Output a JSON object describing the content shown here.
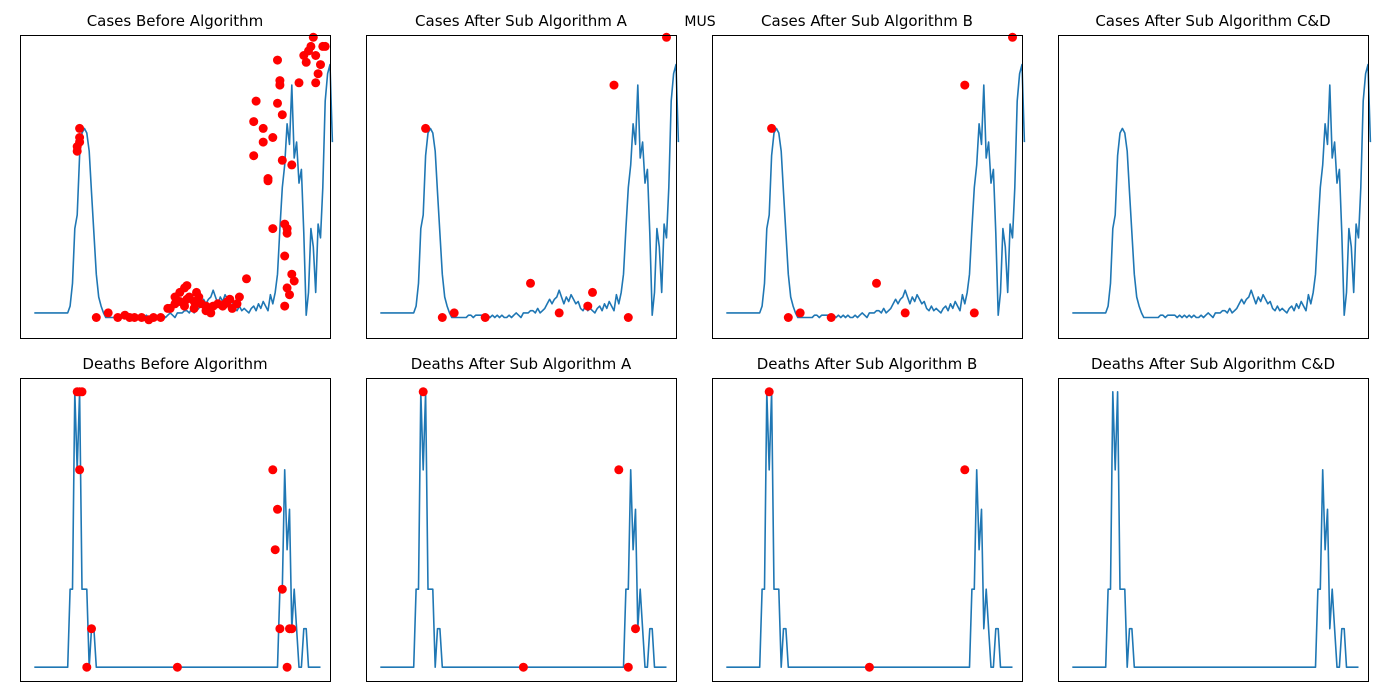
{
  "suptitle": "MUS",
  "chart_data": [
    {
      "type": "line",
      "title": "Cases Before Algorithm",
      "xlabel": "",
      "ylabel": "",
      "xlim": [
        -6,
        124
      ],
      "ylim": [
        -8,
        125
      ],
      "line_color": "#1f77b4",
      "marker_color": "#ff0000",
      "y": [
        3,
        3,
        3,
        3,
        3,
        3,
        3,
        3,
        3,
        3,
        3,
        3,
        3,
        3,
        3,
        6,
        16,
        40,
        46,
        72,
        82,
        84,
        82,
        74,
        56,
        38,
        20,
        10,
        6,
        3,
        1,
        1,
        1,
        1,
        1,
        1,
        1,
        2,
        2,
        1,
        2,
        2,
        2,
        2,
        1,
        2,
        1,
        2,
        1,
        2,
        1,
        2,
        1,
        1,
        2,
        1,
        2,
        3,
        2,
        1,
        3,
        3,
        3,
        4,
        4,
        3,
        5,
        3,
        4,
        5,
        7,
        9,
        7,
        9,
        10,
        13,
        10,
        7,
        10,
        8,
        11,
        9,
        7,
        8,
        5,
        4,
        6,
        4,
        5,
        4,
        3,
        5,
        6,
        4,
        7,
        5,
        8,
        6,
        4,
        11,
        7,
        12,
        20,
        40,
        58,
        68,
        86,
        77,
        103,
        71,
        78,
        60,
        66,
        38,
        2,
        12,
        40,
        32,
        12,
        42,
        36,
        58,
        96,
        108,
        112,
        78
      ],
      "markers_x": [
        18,
        18,
        19,
        19,
        19,
        26,
        31,
        35,
        38,
        40,
        42,
        45,
        48,
        50,
        53,
        56,
        57,
        59,
        59,
        61,
        61,
        63,
        63,
        64,
        64,
        65,
        67,
        67,
        68,
        69,
        70,
        72,
        72,
        73,
        74,
        75,
        77,
        79,
        80,
        81,
        82,
        83,
        85,
        86,
        89,
        92,
        92,
        93,
        96,
        96,
        98,
        98,
        100,
        100,
        102,
        102,
        103,
        103,
        104,
        104,
        105,
        105,
        105,
        106,
        106,
        106,
        107,
        108,
        108,
        109,
        111,
        113,
        114,
        115,
        116,
        117,
        118,
        118,
        119,
        120,
        121,
        122
      ],
      "markers_y": [
        74,
        76,
        78,
        80,
        84,
        1,
        3,
        1,
        2,
        1,
        1,
        1,
        0,
        1,
        1,
        5,
        5,
        7,
        10,
        8,
        12,
        6,
        14,
        9,
        15,
        10,
        5,
        8,
        12,
        10,
        7,
        6,
        4,
        5,
        3,
        6,
        7,
        6,
        7,
        8,
        9,
        5,
        7,
        10,
        18,
        72,
        87,
        96,
        78,
        84,
        61,
        62,
        40,
        80,
        114,
        95,
        103,
        105,
        90,
        70,
        42,
        6,
        28,
        14,
        40,
        38,
        11,
        68,
        20,
        17,
        104,
        116,
        113,
        118,
        120,
        124,
        116,
        104,
        108,
        112,
        120,
        120
      ]
    },
    {
      "type": "line",
      "title": "Cases After Sub Algorithm A",
      "xlabel": "",
      "ylabel": "",
      "xlim": [
        -6,
        124
      ],
      "ylim": [
        -8,
        125
      ],
      "line_color": "#1f77b4",
      "marker_color": "#ff0000",
      "y": [
        3,
        3,
        3,
        3,
        3,
        3,
        3,
        3,
        3,
        3,
        3,
        3,
        3,
        3,
        3,
        6,
        16,
        40,
        46,
        72,
        82,
        84,
        82,
        74,
        56,
        38,
        20,
        10,
        6,
        3,
        1,
        1,
        1,
        1,
        1,
        1,
        1,
        2,
        2,
        1,
        2,
        2,
        2,
        2,
        1,
        2,
        1,
        2,
        1,
        2,
        1,
        2,
        1,
        1,
        2,
        1,
        2,
        3,
        2,
        1,
        3,
        3,
        3,
        4,
        4,
        3,
        5,
        3,
        4,
        5,
        7,
        9,
        7,
        9,
        10,
        13,
        10,
        7,
        10,
        8,
        11,
        9,
        7,
        8,
        5,
        4,
        6,
        4,
        5,
        4,
        3,
        5,
        6,
        4,
        7,
        5,
        8,
        6,
        4,
        11,
        7,
        12,
        20,
        40,
        58,
        68,
        86,
        77,
        103,
        71,
        78,
        60,
        66,
        38,
        2,
        12,
        40,
        32,
        12,
        42,
        36,
        58,
        96,
        108,
        112,
        78
      ],
      "markers_x": [
        19,
        26,
        31,
        44,
        63,
        75,
        87,
        89,
        98,
        104,
        120
      ],
      "markers_y": [
        84,
        1,
        3,
        1,
        16,
        3,
        6,
        12,
        103,
        1,
        124
      ]
    },
    {
      "type": "line",
      "title": "Cases After Sub Algorithm B",
      "xlabel": "",
      "ylabel": "",
      "xlim": [
        -6,
        124
      ],
      "ylim": [
        -8,
        125
      ],
      "line_color": "#1f77b4",
      "marker_color": "#ff0000",
      "y": [
        3,
        3,
        3,
        3,
        3,
        3,
        3,
        3,
        3,
        3,
        3,
        3,
        3,
        3,
        3,
        6,
        16,
        40,
        46,
        72,
        82,
        84,
        82,
        74,
        56,
        38,
        20,
        10,
        6,
        3,
        1,
        1,
        1,
        1,
        1,
        1,
        1,
        2,
        2,
        1,
        2,
        2,
        2,
        2,
        1,
        2,
        1,
        2,
        1,
        2,
        1,
        2,
        1,
        1,
        2,
        1,
        2,
        3,
        2,
        1,
        3,
        3,
        3,
        4,
        4,
        3,
        5,
        3,
        4,
        5,
        7,
        9,
        7,
        9,
        10,
        13,
        10,
        7,
        10,
        8,
        11,
        9,
        7,
        8,
        5,
        4,
        6,
        4,
        5,
        4,
        3,
        5,
        6,
        4,
        7,
        5,
        8,
        6,
        4,
        11,
        7,
        12,
        20,
        40,
        58,
        68,
        86,
        77,
        103,
        71,
        78,
        60,
        66,
        38,
        2,
        12,
        40,
        32,
        12,
        42,
        36,
        58,
        96,
        108,
        112,
        78
      ],
      "markers_x": [
        19,
        26,
        31,
        44,
        63,
        75,
        100,
        104,
        120
      ],
      "markers_y": [
        84,
        1,
        3,
        1,
        16,
        3,
        103,
        3,
        124
      ]
    },
    {
      "type": "line",
      "title": "Cases After Sub Algorithm C&D",
      "xlabel": "",
      "ylabel": "",
      "xlim": [
        -6,
        124
      ],
      "ylim": [
        -8,
        125
      ],
      "line_color": "#1f77b4",
      "marker_color": "#ff0000",
      "y": [
        3,
        3,
        3,
        3,
        3,
        3,
        3,
        3,
        3,
        3,
        3,
        3,
        3,
        3,
        3,
        6,
        16,
        40,
        46,
        72,
        82,
        84,
        82,
        74,
        56,
        38,
        20,
        10,
        6,
        3,
        1,
        1,
        1,
        1,
        1,
        1,
        1,
        2,
        2,
        1,
        2,
        2,
        2,
        2,
        1,
        2,
        1,
        2,
        1,
        2,
        1,
        2,
        1,
        1,
        2,
        1,
        2,
        3,
        2,
        1,
        3,
        3,
        3,
        4,
        4,
        3,
        5,
        3,
        4,
        5,
        7,
        9,
        7,
        9,
        10,
        13,
        10,
        7,
        10,
        8,
        11,
        9,
        7,
        8,
        5,
        4,
        6,
        4,
        5,
        4,
        3,
        5,
        6,
        4,
        7,
        5,
        8,
        6,
        4,
        11,
        7,
        12,
        20,
        40,
        58,
        68,
        86,
        77,
        103,
        71,
        78,
        60,
        66,
        38,
        2,
        12,
        40,
        32,
        12,
        42,
        36,
        58,
        96,
        108,
        112,
        78
      ],
      "markers_x": [],
      "markers_y": []
    },
    {
      "type": "line",
      "title": "Deaths Before Algorithm",
      "xlabel": "",
      "ylabel": "",
      "xlim": [
        -6,
        124
      ],
      "ylim": [
        -0.15,
        3.15
      ],
      "line_color": "#1f77b4",
      "marker_color": "#ff0000",
      "y": [
        0,
        0,
        0,
        0,
        0,
        0,
        0,
        0,
        0,
        0,
        0,
        0,
        0,
        0,
        0,
        0.85,
        0.85,
        3,
        2.15,
        3,
        0.85,
        0.85,
        0.85,
        0,
        0.42,
        0.42,
        0,
        0,
        0,
        0,
        0,
        0,
        0,
        0,
        0,
        0,
        0,
        0,
        0,
        0,
        0,
        0,
        0,
        0,
        0,
        0,
        0,
        0,
        0,
        0,
        0,
        0,
        0,
        0,
        0,
        0,
        0,
        0,
        0,
        0,
        0,
        0,
        0,
        0,
        0,
        0,
        0,
        0,
        0,
        0,
        0,
        0,
        0,
        0,
        0,
        0,
        0,
        0,
        0,
        0,
        0,
        0,
        0,
        0,
        0,
        0,
        0,
        0,
        0,
        0,
        0,
        0,
        0,
        0,
        0,
        0,
        0,
        0,
        0,
        0,
        0,
        0,
        0,
        0.85,
        0.85,
        2.15,
        1.28,
        1.72,
        0.42,
        0.85,
        0.42,
        0,
        0,
        0.42,
        0.42,
        0,
        0,
        0,
        0,
        0,
        0
      ],
      "markers_x": [
        18,
        19,
        19,
        20,
        22,
        24,
        60,
        100,
        101,
        102,
        103,
        104,
        106,
        107,
        108
      ],
      "markers_y": [
        3,
        2.15,
        3,
        3,
        0,
        0.42,
        0,
        2.15,
        1.28,
        1.72,
        0.42,
        0.85,
        0,
        0.42,
        0.42
      ]
    },
    {
      "type": "line",
      "title": "Deaths After Sub Algorithm A",
      "xlabel": "",
      "ylabel": "",
      "xlim": [
        -6,
        124
      ],
      "ylim": [
        -0.15,
        3.15
      ],
      "line_color": "#1f77b4",
      "marker_color": "#ff0000",
      "y": [
        0,
        0,
        0,
        0,
        0,
        0,
        0,
        0,
        0,
        0,
        0,
        0,
        0,
        0,
        0,
        0.85,
        0.85,
        3,
        2.15,
        3,
        0.85,
        0.85,
        0.85,
        0,
        0.42,
        0.42,
        0,
        0,
        0,
        0,
        0,
        0,
        0,
        0,
        0,
        0,
        0,
        0,
        0,
        0,
        0,
        0,
        0,
        0,
        0,
        0,
        0,
        0,
        0,
        0,
        0,
        0,
        0,
        0,
        0,
        0,
        0,
        0,
        0,
        0,
        0,
        0,
        0,
        0,
        0,
        0,
        0,
        0,
        0,
        0,
        0,
        0,
        0,
        0,
        0,
        0,
        0,
        0,
        0,
        0,
        0,
        0,
        0,
        0,
        0,
        0,
        0,
        0,
        0,
        0,
        0,
        0,
        0,
        0,
        0,
        0,
        0,
        0,
        0,
        0,
        0,
        0,
        0,
        0.85,
        0.85,
        2.15,
        1.28,
        1.72,
        0.42,
        0.85,
        0.42,
        0,
        0,
        0.42,
        0.42,
        0,
        0,
        0,
        0,
        0,
        0
      ],
      "markers_x": [
        18,
        60,
        100,
        104,
        107
      ],
      "markers_y": [
        3,
        0,
        2.15,
        0,
        0.42
      ]
    },
    {
      "type": "line",
      "title": "Deaths After Sub Algorithm B",
      "xlabel": "",
      "ylabel": "",
      "xlim": [
        -6,
        124
      ],
      "ylim": [
        -0.15,
        3.15
      ],
      "line_color": "#1f77b4",
      "marker_color": "#ff0000",
      "y": [
        0,
        0,
        0,
        0,
        0,
        0,
        0,
        0,
        0,
        0,
        0,
        0,
        0,
        0,
        0,
        0.85,
        0.85,
        3,
        2.15,
        3,
        0.85,
        0.85,
        0.85,
        0,
        0.42,
        0.42,
        0,
        0,
        0,
        0,
        0,
        0,
        0,
        0,
        0,
        0,
        0,
        0,
        0,
        0,
        0,
        0,
        0,
        0,
        0,
        0,
        0,
        0,
        0,
        0,
        0,
        0,
        0,
        0,
        0,
        0,
        0,
        0,
        0,
        0,
        0,
        0,
        0,
        0,
        0,
        0,
        0,
        0,
        0,
        0,
        0,
        0,
        0,
        0,
        0,
        0,
        0,
        0,
        0,
        0,
        0,
        0,
        0,
        0,
        0,
        0,
        0,
        0,
        0,
        0,
        0,
        0,
        0,
        0,
        0,
        0,
        0,
        0,
        0,
        0,
        0,
        0,
        0,
        0.85,
        0.85,
        2.15,
        1.28,
        1.72,
        0.42,
        0.85,
        0.42,
        0,
        0,
        0.42,
        0.42,
        0,
        0,
        0,
        0,
        0,
        0
      ],
      "markers_x": [
        18,
        60,
        100
      ],
      "markers_y": [
        3,
        0,
        2.15
      ]
    },
    {
      "type": "line",
      "title": "Deaths After Sub Algorithm C&D",
      "xlabel": "",
      "ylabel": "",
      "xlim": [
        -6,
        124
      ],
      "ylim": [
        -0.15,
        3.15
      ],
      "line_color": "#1f77b4",
      "marker_color": "#ff0000",
      "y": [
        0,
        0,
        0,
        0,
        0,
        0,
        0,
        0,
        0,
        0,
        0,
        0,
        0,
        0,
        0,
        0.85,
        0.85,
        3,
        2.15,
        3,
        0.85,
        0.85,
        0.85,
        0,
        0.42,
        0.42,
        0,
        0,
        0,
        0,
        0,
        0,
        0,
        0,
        0,
        0,
        0,
        0,
        0,
        0,
        0,
        0,
        0,
        0,
        0,
        0,
        0,
        0,
        0,
        0,
        0,
        0,
        0,
        0,
        0,
        0,
        0,
        0,
        0,
        0,
        0,
        0,
        0,
        0,
        0,
        0,
        0,
        0,
        0,
        0,
        0,
        0,
        0,
        0,
        0,
        0,
        0,
        0,
        0,
        0,
        0,
        0,
        0,
        0,
        0,
        0,
        0,
        0,
        0,
        0,
        0,
        0,
        0,
        0,
        0,
        0,
        0,
        0,
        0,
        0,
        0,
        0,
        0,
        0.85,
        0.85,
        2.15,
        1.28,
        1.72,
        0.42,
        0.85,
        0.42,
        0,
        0,
        0.42,
        0.42,
        0,
        0,
        0,
        0,
        0,
        0
      ],
      "markers_x": [],
      "markers_y": []
    }
  ]
}
